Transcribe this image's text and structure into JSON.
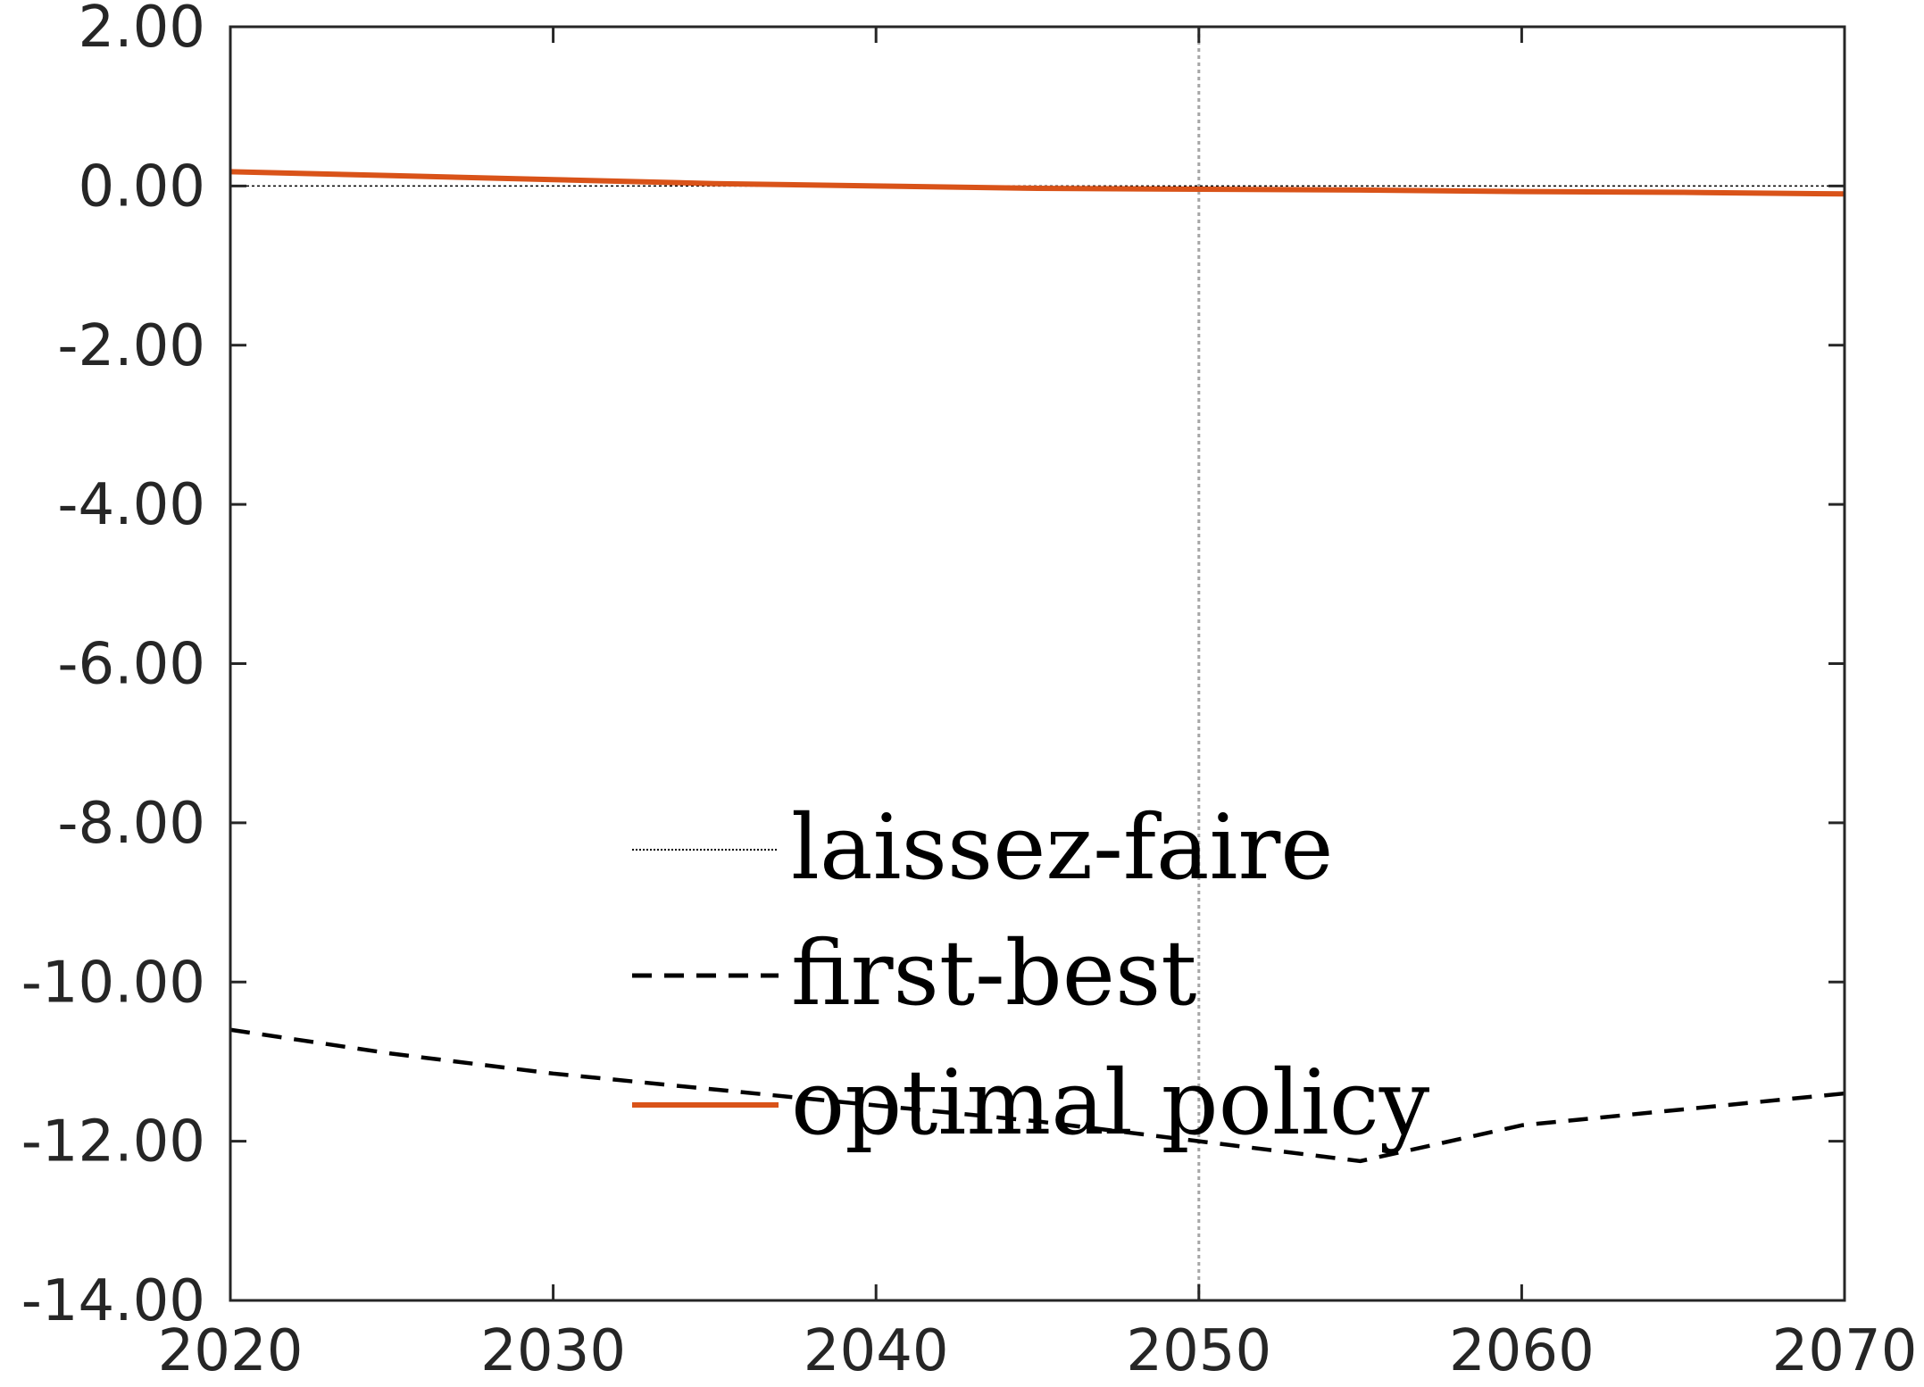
{
  "chart_data": {
    "type": "line",
    "title": "",
    "xlabel": "",
    "ylabel": "",
    "xlim": [
      2020,
      2070
    ],
    "ylim": [
      -14,
      2
    ],
    "xticks": [
      2020,
      2030,
      2040,
      2050,
      2060,
      2070
    ],
    "xtick_labels": [
      "2020",
      "2030",
      "2040",
      "2050",
      "2060",
      "2070"
    ],
    "yticks": [
      2,
      0,
      -2,
      -4,
      -6,
      -8,
      -10,
      -12,
      -14
    ],
    "ytick_labels": [
      "2.00",
      "0.00",
      "-2.00",
      "-4.00",
      "-6.00",
      "-8.00",
      "-10.00",
      "-12.00",
      "-14.00"
    ],
    "reference_line": {
      "x": 2050,
      "style": "dotted",
      "color": "#a6a6a6"
    },
    "grid": false,
    "legend_position": "lower-center",
    "series": [
      {
        "name": "laissez-faire",
        "style": "dotted",
        "color": "#000000",
        "x": [
          2020,
          2070
        ],
        "y": [
          0,
          0
        ]
      },
      {
        "name": "first-best",
        "style": "dashed",
        "color": "#000000",
        "x": [
          2020,
          2025,
          2030,
          2035,
          2040,
          2045,
          2050,
          2055,
          2060,
          2065,
          2070
        ],
        "y": [
          -10.6,
          -10.9,
          -11.15,
          -11.35,
          -11.55,
          -11.75,
          -12.0,
          -12.25,
          -11.8,
          -11.6,
          -11.4
        ]
      },
      {
        "name": "optimal policy",
        "style": "solid",
        "color": "#d95319",
        "x": [
          2020,
          2025,
          2030,
          2035,
          2040,
          2045,
          2050,
          2055,
          2060,
          2065,
          2070
        ],
        "y": [
          0.18,
          0.13,
          0.08,
          0.03,
          0.0,
          -0.03,
          -0.04,
          -0.05,
          -0.07,
          -0.08,
          -0.1
        ]
      }
    ]
  }
}
